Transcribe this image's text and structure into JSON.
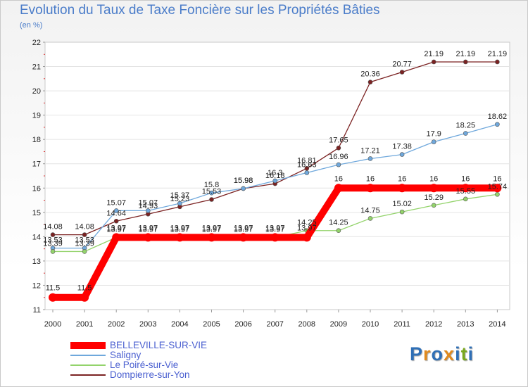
{
  "chart_data": {
    "type": "line",
    "title": "Evolution du Taux de Taxe Foncière sur les Propriétés Bâties",
    "subtitle": "(en %)",
    "xlabel": "",
    "ylabel": "",
    "ylim": [
      11,
      22
    ],
    "yticks": [
      "11",
      "12",
      "13",
      "14",
      "15",
      "16",
      "17",
      "18",
      "19",
      "20",
      "21",
      "22"
    ],
    "categories": [
      "2000",
      "2001",
      "2002",
      "2003",
      "2004",
      "2005",
      "2006",
      "2007",
      "2008",
      "2009",
      "2010",
      "2011",
      "2012",
      "2013",
      "2014"
    ],
    "grid": "horizontal",
    "legend": "bottom-left",
    "series": [
      {
        "name": "BELLEVILLE-SUR-VIE",
        "color": "#ff0000",
        "values": [
          11.5,
          11.5,
          13.97,
          13.97,
          13.97,
          13.97,
          13.97,
          13.97,
          13.97,
          16,
          16,
          16,
          16,
          16,
          16
        ],
        "labels": [
          "11.5",
          "11.5",
          "13.97",
          "13.97",
          "13.97",
          "13.97",
          "13.97",
          "13.97",
          "13.97",
          "16",
          "16",
          "16",
          "16",
          "16",
          "16"
        ]
      },
      {
        "name": "Saligny",
        "color": "#6fa8dc",
        "values": [
          13.53,
          13.53,
          15.07,
          15.07,
          15.37,
          15.8,
          15.98,
          16.3,
          16.63,
          16.96,
          17.21,
          17.38,
          17.9,
          18.25,
          18.62
        ],
        "labels": [
          "13.53",
          "13.53",
          "15.07",
          "15.07",
          "15.37",
          "15.8",
          "15.98",
          "16.3",
          "16.63",
          "16.96",
          "17.21",
          "17.38",
          "17.9",
          "18.25",
          "18.62"
        ]
      },
      {
        "name": "Le Poiré-sur-Vie",
        "color": "#93d36b",
        "values": [
          13.39,
          13.39,
          13.97,
          13.97,
          13.97,
          13.97,
          13.97,
          13.97,
          14.25,
          14.25,
          14.75,
          15.02,
          15.29,
          15.55,
          15.74
        ],
        "labels": [
          "13.39",
          "13.39",
          "13.97",
          "13.97",
          "13.97",
          "13.97",
          "13.97",
          "13.97",
          "14.25",
          "14.25",
          "14.75",
          "15.02",
          "15.29",
          "15.55",
          "15.74"
        ]
      },
      {
        "name": "Dompierre-sur-Yon",
        "color": "#7b2222",
        "values": [
          14.08,
          14.08,
          14.64,
          14.93,
          15.23,
          15.53,
          15.98,
          16.18,
          16.81,
          17.65,
          20.36,
          20.77,
          21.19,
          21.19,
          21.19
        ],
        "labels": [
          "14.08",
          "14.08",
          "14.64",
          "14.93",
          "15.23",
          "15.53",
          "15.98",
          "16.18",
          "16.81",
          "17.65",
          "20.36",
          "20.77",
          "21.19",
          "21.19",
          "21.19"
        ]
      }
    ]
  },
  "logo": {
    "letters": [
      "P",
      "r",
      "o",
      "x",
      "i",
      "t",
      "i"
    ],
    "colors": [
      "#2f6fb6",
      "#e08a1e",
      "#2f6fb6",
      "#e08a1e",
      "#2f6fb6",
      "#7aa81e",
      "#2f6fb6"
    ]
  }
}
